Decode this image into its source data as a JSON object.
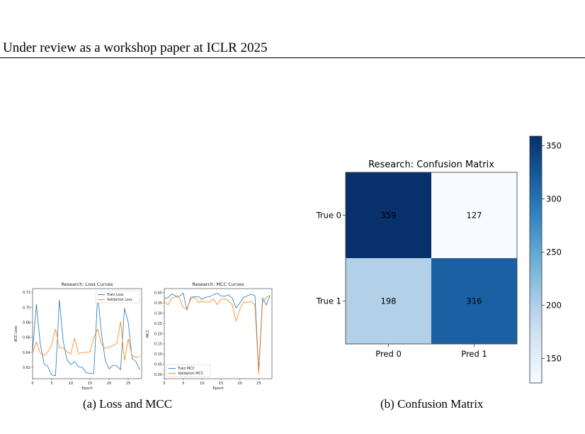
{
  "header": {
    "text": "Under review as a workshop paper at ICLR 2025"
  },
  "captions": {
    "a": "(a) Loss and MCC",
    "b": "(b) Confusion Matrix"
  },
  "chart_data": [
    {
      "type": "line",
      "title": "Research: Loss Curves",
      "xlabel": "Epoch",
      "ylabel": "BCE Loss",
      "xlim": [
        0,
        28.5
      ],
      "ylim": [
        0.605,
        0.725
      ],
      "xticks": [
        0,
        5,
        10,
        15,
        20,
        25
      ],
      "yticks": [
        0.62,
        0.64,
        0.66,
        0.68,
        0.7,
        0.72
      ],
      "ytick_labels": [
        "0.62",
        "0.64",
        "0.66",
        "0.68",
        "0.70",
        "0.72"
      ],
      "legend": "top-right",
      "x": [
        0,
        1,
        2,
        3,
        4,
        5,
        6,
        7,
        8,
        9,
        10,
        11,
        12,
        13,
        14,
        15,
        16,
        17,
        18,
        19,
        20,
        21,
        22,
        23,
        24,
        25,
        26,
        27,
        28
      ],
      "series": [
        {
          "name": "Train Loss",
          "color": "#1f77b4",
          "values": [
            0.643,
            0.704,
            0.652,
            0.625,
            0.621,
            0.61,
            0.609,
            0.71,
            0.655,
            0.63,
            0.624,
            0.628,
            0.621,
            0.62,
            0.613,
            0.612,
            0.612,
            0.717,
            0.665,
            0.629,
            0.618,
            0.623,
            0.622,
            0.617,
            0.699,
            0.68,
            0.632,
            0.628,
            0.617
          ]
        },
        {
          "name": "Validation Loss",
          "color": "#ff7f0e",
          "values": [
            0.64,
            0.654,
            0.639,
            0.636,
            0.641,
            0.65,
            0.671,
            0.646,
            0.646,
            0.641,
            0.638,
            0.659,
            0.638,
            0.64,
            0.64,
            0.641,
            0.66,
            0.671,
            0.651,
            0.645,
            0.647,
            0.649,
            0.652,
            0.681,
            0.629,
            0.658,
            0.636,
            0.633,
            0.635
          ]
        }
      ]
    },
    {
      "type": "line",
      "title": "Research: MCC Curves",
      "xlabel": "Epoch",
      "ylabel": "MCC",
      "xlim": [
        0,
        28.5
      ],
      "ylim": [
        -0.02,
        0.42
      ],
      "xticks": [
        0,
        5,
        10,
        15,
        20,
        25
      ],
      "yticks": [
        0.0,
        0.05,
        0.1,
        0.15,
        0.2,
        0.25,
        0.3,
        0.35,
        0.4
      ],
      "ytick_labels": [
        "0.00",
        "0.05",
        "0.10",
        "0.15",
        "0.20",
        "0.25",
        "0.30",
        "0.35",
        "0.40"
      ],
      "legend": "bottom-left",
      "x": [
        0,
        1,
        2,
        3,
        4,
        5,
        6,
        7,
        8,
        9,
        10,
        11,
        12,
        13,
        14,
        15,
        16,
        17,
        18,
        19,
        20,
        21,
        22,
        23,
        24,
        25,
        26,
        27,
        28
      ],
      "series": [
        {
          "name": "Train MCC",
          "color": "#1f77b4",
          "values": [
            0.372,
            0.376,
            0.394,
            0.385,
            0.382,
            0.398,
            0.315,
            0.378,
            0.38,
            0.382,
            0.368,
            0.378,
            0.381,
            0.39,
            0.398,
            0.385,
            0.383,
            0.39,
            0.373,
            0.325,
            0.35,
            0.378,
            0.385,
            0.393,
            0.385,
            0.018,
            0.374,
            0.34,
            0.387
          ]
        },
        {
          "name": "Validation MCC",
          "color": "#ff7f0e",
          "values": [
            0.358,
            0.34,
            0.375,
            0.38,
            0.375,
            0.328,
            0.322,
            0.368,
            0.38,
            0.352,
            0.358,
            0.354,
            0.355,
            0.37,
            0.342,
            0.368,
            0.37,
            0.362,
            0.34,
            0.262,
            0.318,
            0.355,
            0.352,
            0.358,
            0.34,
            0.002,
            0.352,
            0.378,
            0.387
          ]
        }
      ]
    },
    {
      "type": "heatmap",
      "title": "Research: Confusion Matrix",
      "rows": [
        "True 0",
        "True 1"
      ],
      "columns": [
        "Pred 0",
        "Pred 1"
      ],
      "values": [
        [
          359,
          127
        ],
        [
          198,
          316
        ]
      ],
      "colormap": "Blues",
      "colorbar": {
        "min": 127,
        "max": 359,
        "ticks": [
          150,
          200,
          250,
          300,
          350
        ]
      }
    }
  ]
}
